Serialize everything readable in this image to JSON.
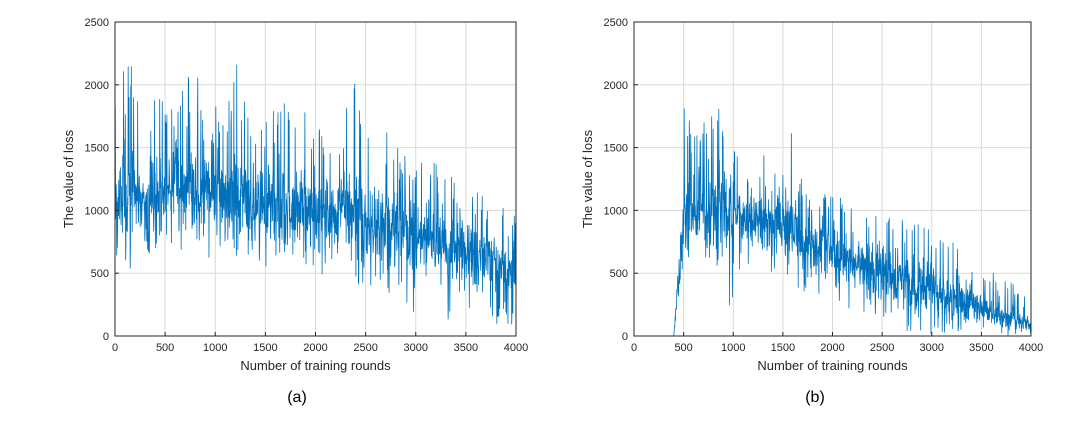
{
  "colors": {
    "series": "#0072BD",
    "grid": "#d9d9d9",
    "axis": "#262626"
  },
  "chart_data": [
    {
      "type": "line",
      "caption": "(a)",
      "xlabel": "Number of training rounds",
      "ylabel": "The value of loss",
      "xlim": [
        0,
        4000
      ],
      "ylim": [
        0,
        2500
      ],
      "xticks": [
        0,
        500,
        1000,
        1500,
        2000,
        2500,
        3000,
        3500,
        4000
      ],
      "yticks": [
        0,
        500,
        1000,
        1500,
        2000,
        2500
      ],
      "grid": true,
      "series": [
        {
          "x": [
            0,
            100,
            200,
            300,
            400,
            500,
            600,
            700,
            800,
            900,
            1000,
            1100,
            1200,
            1300,
            1400,
            1500,
            1600,
            1700,
            1800,
            1900,
            2000,
            2100,
            2200,
            2300,
            2400,
            2500,
            2600,
            2700,
            2800,
            2900,
            3000,
            3100,
            3200,
            3300,
            3400,
            3500,
            3600,
            3700,
            3800,
            3900,
            4000
          ],
          "y_mean": [
            1050,
            1100,
            1150,
            1120,
            1100,
            1180,
            1200,
            1220,
            1150,
            1150,
            1140,
            1100,
            1100,
            1120,
            1050,
            1050,
            1050,
            1000,
            1050,
            1020,
            1000,
            950,
            950,
            980,
            950,
            900,
            900,
            850,
            820,
            800,
            780,
            750,
            700,
            700,
            680,
            650,
            620,
            600,
            560,
            500,
            480
          ],
          "y_max": [
            1850,
            2300,
            2150,
            2050,
            1900,
            2000,
            1800,
            2000,
            2200,
            1700,
            1850,
            1850,
            2200,
            1900,
            1800,
            1800,
            1900,
            1850,
            1700,
            1900,
            1750,
            1700,
            1600,
            1800,
            2100,
            1800,
            2100,
            1700,
            1500,
            1500,
            1500,
            1500,
            1400,
            1300,
            1350,
            1300,
            1200,
            1200,
            1000,
            1050,
            950
          ],
          "y_min": [
            600,
            550,
            500,
            650,
            650,
            700,
            600,
            700,
            500,
            500,
            600,
            650,
            600,
            500,
            600,
            550,
            500,
            450,
            600,
            500,
            500,
            450,
            450,
            400,
            350,
            350,
            400,
            300,
            150,
            200,
            150,
            150,
            200,
            100,
            150,
            150,
            150,
            100,
            100,
            100,
            80
          ]
        }
      ]
    },
    {
      "type": "line",
      "caption": "(b)",
      "xlabel": "Number of training rounds",
      "ylabel": "The value of loss",
      "xlim": [
        0,
        4000
      ],
      "ylim": [
        0,
        2500
      ],
      "xticks": [
        0,
        500,
        1000,
        1500,
        2000,
        2500,
        3000,
        3500,
        4000
      ],
      "yticks": [
        0,
        500,
        1000,
        1500,
        2000,
        2500
      ],
      "grid": true,
      "series": [
        {
          "x": [
            0,
            100,
            200,
            300,
            400,
            500,
            600,
            700,
            800,
            900,
            1000,
            1100,
            1200,
            1300,
            1400,
            1500,
            1600,
            1700,
            1800,
            1900,
            2000,
            2100,
            2200,
            2300,
            2400,
            2500,
            2600,
            2700,
            2800,
            2900,
            3000,
            3100,
            3200,
            3300,
            3400,
            3500,
            3600,
            3700,
            3800,
            3900,
            4000
          ],
          "y_mean": [
            0,
            0,
            0,
            0,
            0,
            1000,
            950,
            1000,
            1050,
            1000,
            950,
            950,
            900,
            900,
            900,
            880,
            850,
            800,
            750,
            700,
            650,
            620,
            580,
            550,
            520,
            500,
            480,
            450,
            420,
            380,
            350,
            320,
            300,
            270,
            250,
            220,
            200,
            180,
            150,
            120,
            80
          ],
          "y_max": [
            0,
            0,
            0,
            0,
            0,
            2050,
            1700,
            2000,
            2100,
            1600,
            1600,
            1300,
            1250,
            1450,
            1300,
            1300,
            1800,
            1250,
            1200,
            1150,
            1150,
            1100,
            1100,
            1000,
            1000,
            1050,
            1000,
            950,
            850,
            1000,
            850,
            800,
            750,
            700,
            550,
            550,
            500,
            500,
            450,
            350,
            250
          ],
          "y_min": [
            0,
            0,
            0,
            0,
            0,
            600,
            500,
            500,
            600,
            300,
            200,
            550,
            500,
            400,
            450,
            400,
            350,
            350,
            300,
            300,
            250,
            250,
            200,
            150,
            150,
            150,
            100,
            50,
            0,
            50,
            0,
            0,
            0,
            0,
            50,
            0,
            0,
            0,
            0,
            0,
            0
          ]
        }
      ]
    }
  ]
}
